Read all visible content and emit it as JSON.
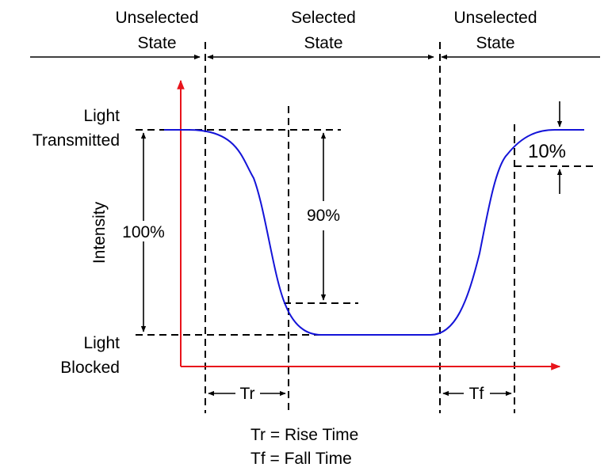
{
  "states": {
    "left_line1": "Unselected",
    "left_line2": "State",
    "middle_line1": "Selected",
    "middle_line2": "State",
    "right_line1": "Unselected",
    "right_line2": "State"
  },
  "levels": {
    "top_line1": "Light",
    "top_line2": "Transmitted",
    "bottom_line1": "Light",
    "bottom_line2": "Blocked"
  },
  "axis": {
    "y_label": "Intensity"
  },
  "measures": {
    "full_swing": "100%",
    "ninety": "90%",
    "ten": "10%",
    "tr": "Tr",
    "tf": "Tf"
  },
  "legend": {
    "tr_def": "Tr = Rise Time",
    "tf_def": "Tf = Fall Time"
  },
  "colors": {
    "axis": "#e8141b",
    "curve": "#1414d8",
    "ink": "#000000"
  }
}
